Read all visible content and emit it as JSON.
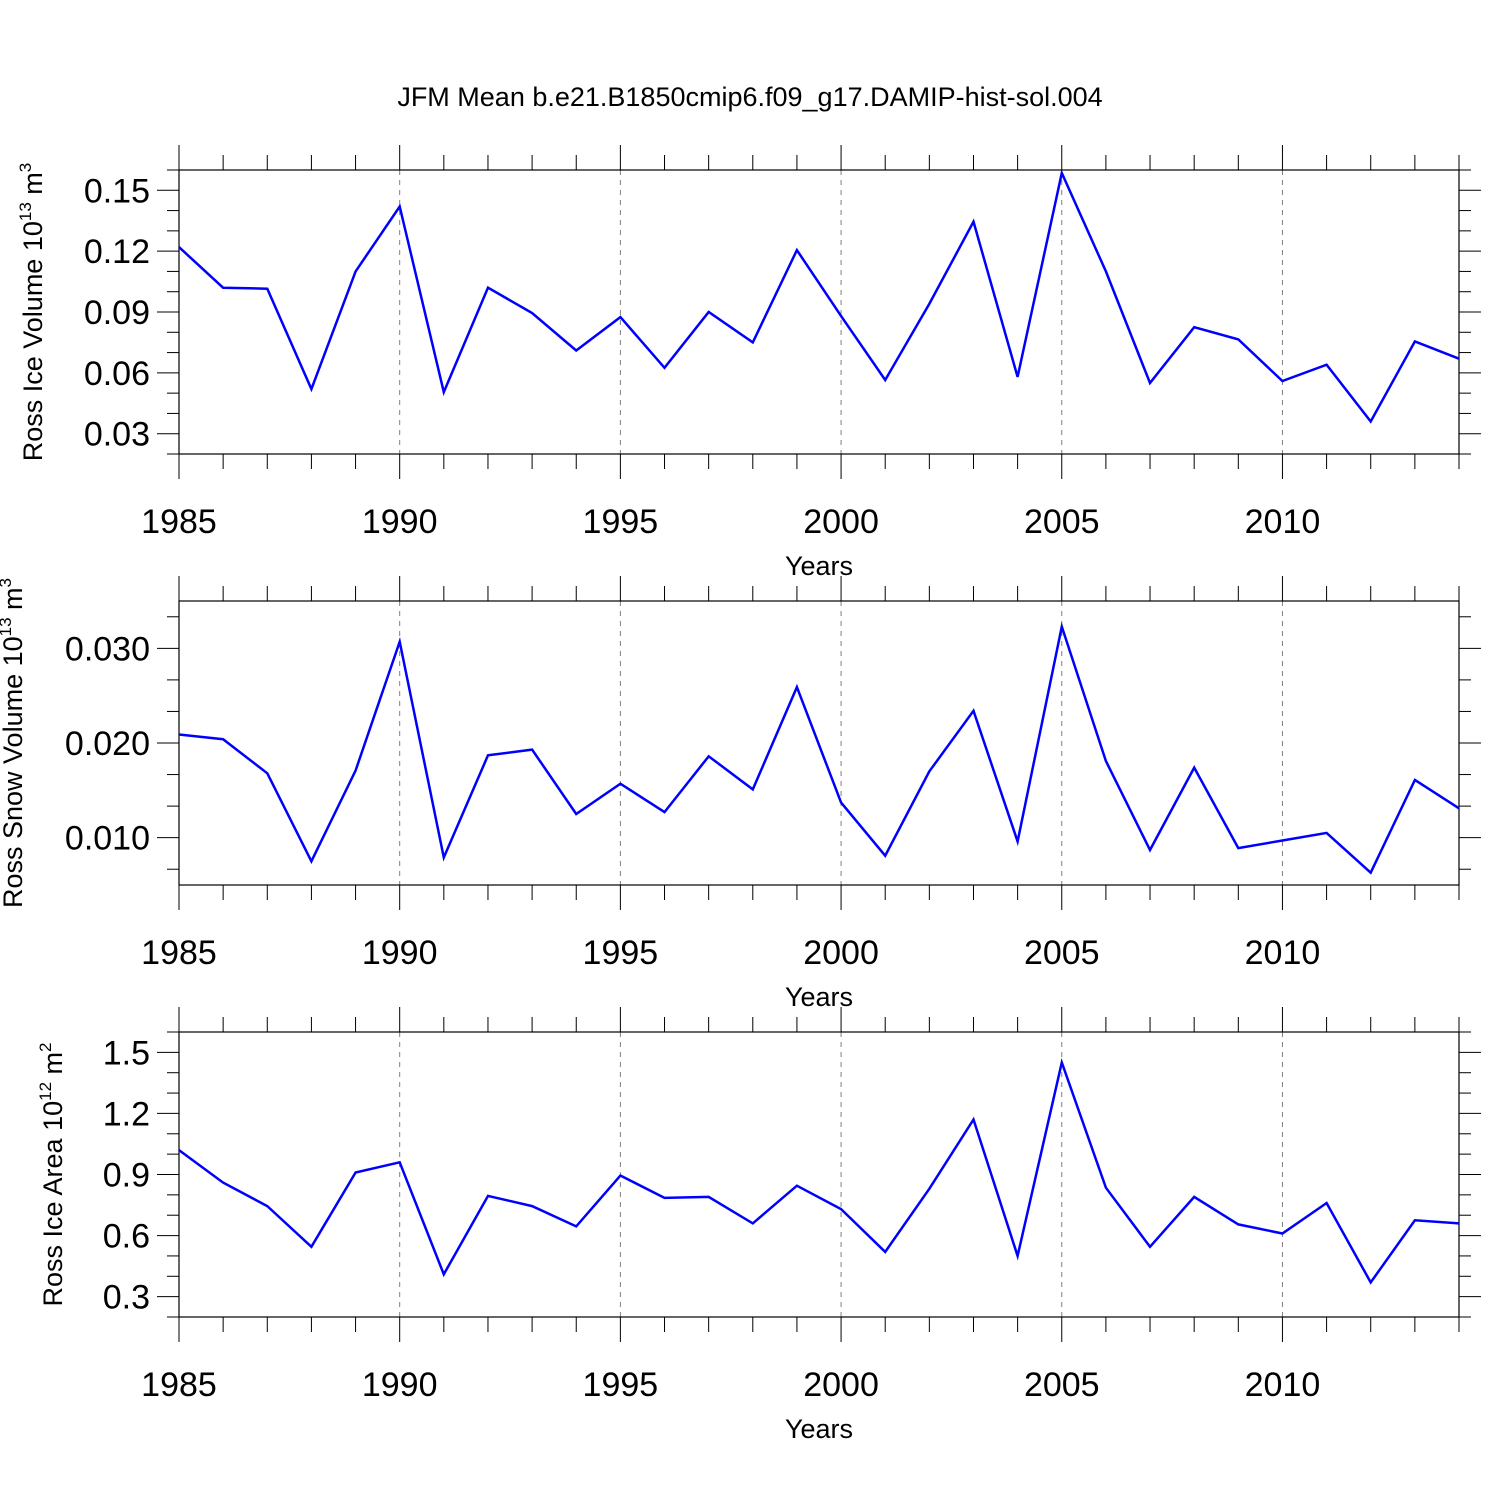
{
  "title": "JFM Mean b.e21.B1850cmip6.f09_g17.DAMIP-hist-sol.004",
  "colors": {
    "series": "#0000ff",
    "axis": "#000000",
    "grid": "#808080"
  },
  "chart_data": [
    {
      "type": "line",
      "ylabel": {
        "text": "Ross Ice Volume 10",
        "sup": "13",
        "unit": " m",
        "unit_sup": "3"
      },
      "xlabel": "Years",
      "xlim": [
        1985,
        2014
      ],
      "ylim": [
        0.02,
        0.16
      ],
      "xticks": [
        "1985",
        "1990",
        "1995",
        "2000",
        "2005",
        "2010"
      ],
      "yticks": [
        "0.03",
        "0.06",
        "0.09",
        "0.12",
        "0.15"
      ],
      "ytick_values": [
        0.03,
        0.06,
        0.09,
        0.12,
        0.15
      ],
      "grid": "vertical dashed at major x ticks",
      "x": [
        1985,
        1986,
        1987,
        1988,
        1989,
        1990,
        1991,
        1992,
        1993,
        1994,
        1995,
        1996,
        1997,
        1998,
        1999,
        2000,
        2001,
        2002,
        2003,
        2004,
        2005,
        2006,
        2007,
        2008,
        2009,
        2010,
        2011,
        2012,
        2013,
        2014
      ],
      "series": [
        {
          "name": "Ross Ice Volume",
          "values": [
            0.122,
            0.102,
            0.1015,
            0.052,
            0.11,
            0.142,
            0.0505,
            0.102,
            0.0895,
            0.071,
            0.0875,
            0.0625,
            0.09,
            0.075,
            0.1205,
            0.088,
            0.0565,
            0.094,
            0.1345,
            0.058,
            0.1585,
            0.11,
            0.055,
            0.0825,
            0.0765,
            0.056,
            0.064,
            0.036,
            0.0755,
            0.067
          ]
        }
      ]
    },
    {
      "type": "line",
      "ylabel": {
        "text": "Ross Snow Volume 10",
        "sup": "13",
        "unit": " m",
        "unit_sup": "3"
      },
      "xlabel": "Years",
      "xlim": [
        1985,
        2014
      ],
      "ylim": [
        0.005,
        0.035
      ],
      "xticks": [
        "1985",
        "1990",
        "1995",
        "2000",
        "2005",
        "2010"
      ],
      "yticks": [
        "0.010",
        "0.020",
        "0.030"
      ],
      "ytick_values": [
        0.01,
        0.02,
        0.03
      ],
      "grid": "vertical dashed at major x ticks",
      "x": [
        1985,
        1986,
        1987,
        1988,
        1989,
        1990,
        1991,
        1992,
        1993,
        1994,
        1995,
        1996,
        1997,
        1998,
        1999,
        2000,
        2001,
        2002,
        2003,
        2004,
        2005,
        2006,
        2007,
        2008,
        2009,
        2010,
        2011,
        2012,
        2013,
        2014
      ],
      "series": [
        {
          "name": "Ross Snow Volume",
          "values": [
            0.0209,
            0.0204,
            0.0168,
            0.0075,
            0.0171,
            0.0307,
            0.0079,
            0.0187,
            0.0193,
            0.0125,
            0.0157,
            0.0127,
            0.0186,
            0.0151,
            0.0259,
            0.0137,
            0.0081,
            0.017,
            0.0234,
            0.0096,
            0.0323,
            0.0181,
            0.0087,
            0.0174,
            0.0089,
            0.0097,
            0.0105,
            0.0063,
            0.0161,
            0.0131
          ]
        }
      ]
    },
    {
      "type": "line",
      "ylabel": {
        "text": "Ross Ice Area 10",
        "sup": "12",
        "unit": " m",
        "unit_sup": "2"
      },
      "xlabel": "Years",
      "xlim": [
        1985,
        2014
      ],
      "ylim": [
        0.2,
        1.6
      ],
      "xticks": [
        "1985",
        "1990",
        "1995",
        "2000",
        "2005",
        "2010"
      ],
      "yticks": [
        "0.3",
        "0.6",
        "0.9",
        "1.2",
        "1.5"
      ],
      "ytick_values": [
        0.3,
        0.6,
        0.9,
        1.2,
        1.5
      ],
      "grid": "vertical dashed at major x ticks",
      "x": [
        1985,
        1986,
        1987,
        1988,
        1989,
        1990,
        1991,
        1992,
        1993,
        1994,
        1995,
        1996,
        1997,
        1998,
        1999,
        2000,
        2001,
        2002,
        2003,
        2004,
        2005,
        2006,
        2007,
        2008,
        2009,
        2010,
        2011,
        2012,
        2013,
        2014
      ],
      "series": [
        {
          "name": "Ross Ice Area",
          "values": [
            1.02,
            0.86,
            0.745,
            0.545,
            0.91,
            0.96,
            0.41,
            0.795,
            0.745,
            0.645,
            0.895,
            0.785,
            0.79,
            0.66,
            0.845,
            0.73,
            0.52,
            0.83,
            1.17,
            0.5,
            1.45,
            0.835,
            0.545,
            0.79,
            0.655,
            0.61,
            0.76,
            0.37,
            0.675,
            0.66
          ]
        }
      ]
    }
  ]
}
